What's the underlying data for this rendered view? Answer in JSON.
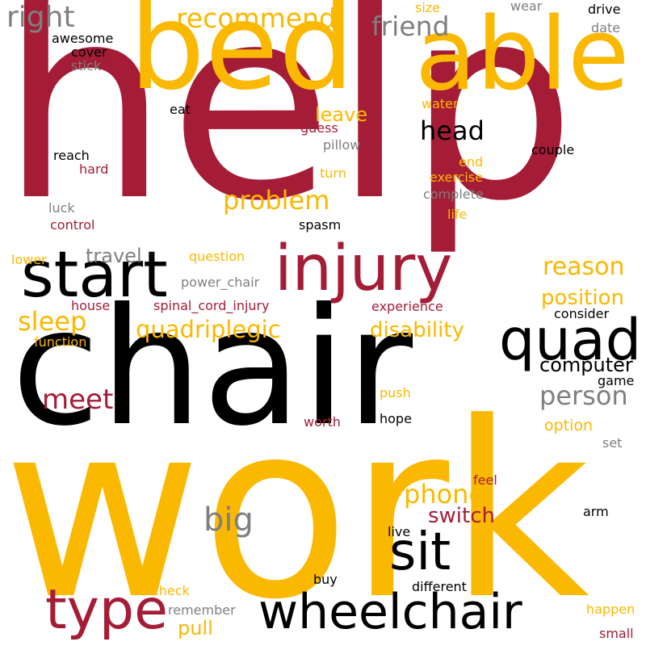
{
  "palette": {
    "crimson": "#a51c36",
    "gold": "#fbb800",
    "black": "#000000",
    "gray": "#7f7f7f"
  },
  "words": [
    {
      "id": "help",
      "text": "help",
      "color": "crimson"
    },
    {
      "id": "work",
      "text": "work",
      "color": "gold"
    },
    {
      "id": "chair",
      "text": "chair",
      "color": "black"
    },
    {
      "id": "bed",
      "text": "bed",
      "color": "gold"
    },
    {
      "id": "able",
      "text": "able",
      "color": "gold"
    },
    {
      "id": "injury",
      "text": "injury",
      "color": "crimson"
    },
    {
      "id": "start",
      "text": "start",
      "color": "black"
    },
    {
      "id": "quad",
      "text": "quad",
      "color": "black"
    },
    {
      "id": "wheelchair",
      "text": "wheelchair",
      "color": "black"
    },
    {
      "id": "sit",
      "text": "sit",
      "color": "black"
    },
    {
      "id": "type",
      "text": "type",
      "color": "crimson"
    },
    {
      "id": "right",
      "text": "right",
      "color": "gray"
    },
    {
      "id": "recommend",
      "text": "recommend",
      "color": "gold"
    },
    {
      "id": "friend",
      "text": "friend",
      "color": "gray"
    },
    {
      "id": "head",
      "text": "head",
      "color": "black"
    },
    {
      "id": "problem",
      "text": "problem",
      "color": "gold"
    },
    {
      "id": "reason",
      "text": "reason",
      "color": "gold"
    },
    {
      "id": "position",
      "text": "position",
      "color": "gold"
    },
    {
      "id": "quadriplegic",
      "text": "quadriplegic",
      "color": "gold"
    },
    {
      "id": "sleep",
      "text": "sleep",
      "color": "gold"
    },
    {
      "id": "disability",
      "text": "disability",
      "color": "gold"
    },
    {
      "id": "meet",
      "text": "meet",
      "color": "crimson"
    },
    {
      "id": "person",
      "text": "person",
      "color": "gray"
    },
    {
      "id": "computer",
      "text": "computer",
      "color": "black"
    },
    {
      "id": "phone",
      "text": "phone",
      "color": "gold"
    },
    {
      "id": "switch",
      "text": "switch",
      "color": "crimson"
    },
    {
      "id": "big",
      "text": "big",
      "color": "gray"
    },
    {
      "id": "pull",
      "text": "pull",
      "color": "gold"
    },
    {
      "id": "leave",
      "text": "leave",
      "color": "gold"
    },
    {
      "id": "travel",
      "text": "travel",
      "color": "gray"
    },
    {
      "id": "awesome",
      "text": "awesome",
      "color": "black"
    },
    {
      "id": "cover",
      "text": "cover",
      "color": "black"
    },
    {
      "id": "stick",
      "text": "stick",
      "color": "gray"
    },
    {
      "id": "size",
      "text": "size",
      "color": "gold"
    },
    {
      "id": "wear",
      "text": "wear",
      "color": "gray"
    },
    {
      "id": "drive",
      "text": "drive",
      "color": "black"
    },
    {
      "id": "date",
      "text": "date",
      "color": "gray"
    },
    {
      "id": "eat",
      "text": "eat",
      "color": "black"
    },
    {
      "id": "water",
      "text": "water",
      "color": "gold"
    },
    {
      "id": "guess",
      "text": "guess",
      "color": "crimson"
    },
    {
      "id": "pillow",
      "text": "pillow",
      "color": "gray"
    },
    {
      "id": "reach",
      "text": "reach",
      "color": "black"
    },
    {
      "id": "hard",
      "text": "hard",
      "color": "crimson"
    },
    {
      "id": "turn",
      "text": "turn",
      "color": "gold"
    },
    {
      "id": "end",
      "text": "end",
      "color": "gold"
    },
    {
      "id": "exercise",
      "text": "exercise",
      "color": "gold"
    },
    {
      "id": "couple",
      "text": "couple",
      "color": "black"
    },
    {
      "id": "complete",
      "text": "complete",
      "color": "gray"
    },
    {
      "id": "luck",
      "text": "luck",
      "color": "gray"
    },
    {
      "id": "life",
      "text": "life",
      "color": "gold"
    },
    {
      "id": "control",
      "text": "control",
      "color": "crimson"
    },
    {
      "id": "spasm",
      "text": "spasm",
      "color": "black"
    },
    {
      "id": "lower",
      "text": "lower",
      "color": "gold"
    },
    {
      "id": "question",
      "text": "question",
      "color": "gold"
    },
    {
      "id": "power_chair",
      "text": "power_chair",
      "color": "gray"
    },
    {
      "id": "house",
      "text": "house",
      "color": "crimson"
    },
    {
      "id": "spinal_cord_injury",
      "text": "spinal_cord_injury",
      "color": "crimson"
    },
    {
      "id": "experience",
      "text": "experience",
      "color": "crimson"
    },
    {
      "id": "consider",
      "text": "consider",
      "color": "black"
    },
    {
      "id": "function",
      "text": "function",
      "color": "gold"
    },
    {
      "id": "game",
      "text": "game",
      "color": "black"
    },
    {
      "id": "push",
      "text": "push",
      "color": "gold"
    },
    {
      "id": "hope",
      "text": "hope",
      "color": "black"
    },
    {
      "id": "worth",
      "text": "worth",
      "color": "crimson"
    },
    {
      "id": "option",
      "text": "option",
      "color": "gold"
    },
    {
      "id": "set",
      "text": "set",
      "color": "gray"
    },
    {
      "id": "feel",
      "text": "feel",
      "color": "crimson"
    },
    {
      "id": "arm",
      "text": "arm",
      "color": "black"
    },
    {
      "id": "live",
      "text": "live",
      "color": "black"
    },
    {
      "id": "buy",
      "text": "buy",
      "color": "black"
    },
    {
      "id": "different",
      "text": "different",
      "color": "black"
    },
    {
      "id": "check",
      "text": "check",
      "color": "gold"
    },
    {
      "id": "remember",
      "text": "remember",
      "color": "gray"
    },
    {
      "id": "happen",
      "text": "happen",
      "color": "gold"
    },
    {
      "id": "small",
      "text": "small",
      "color": "crimson"
    }
  ]
}
